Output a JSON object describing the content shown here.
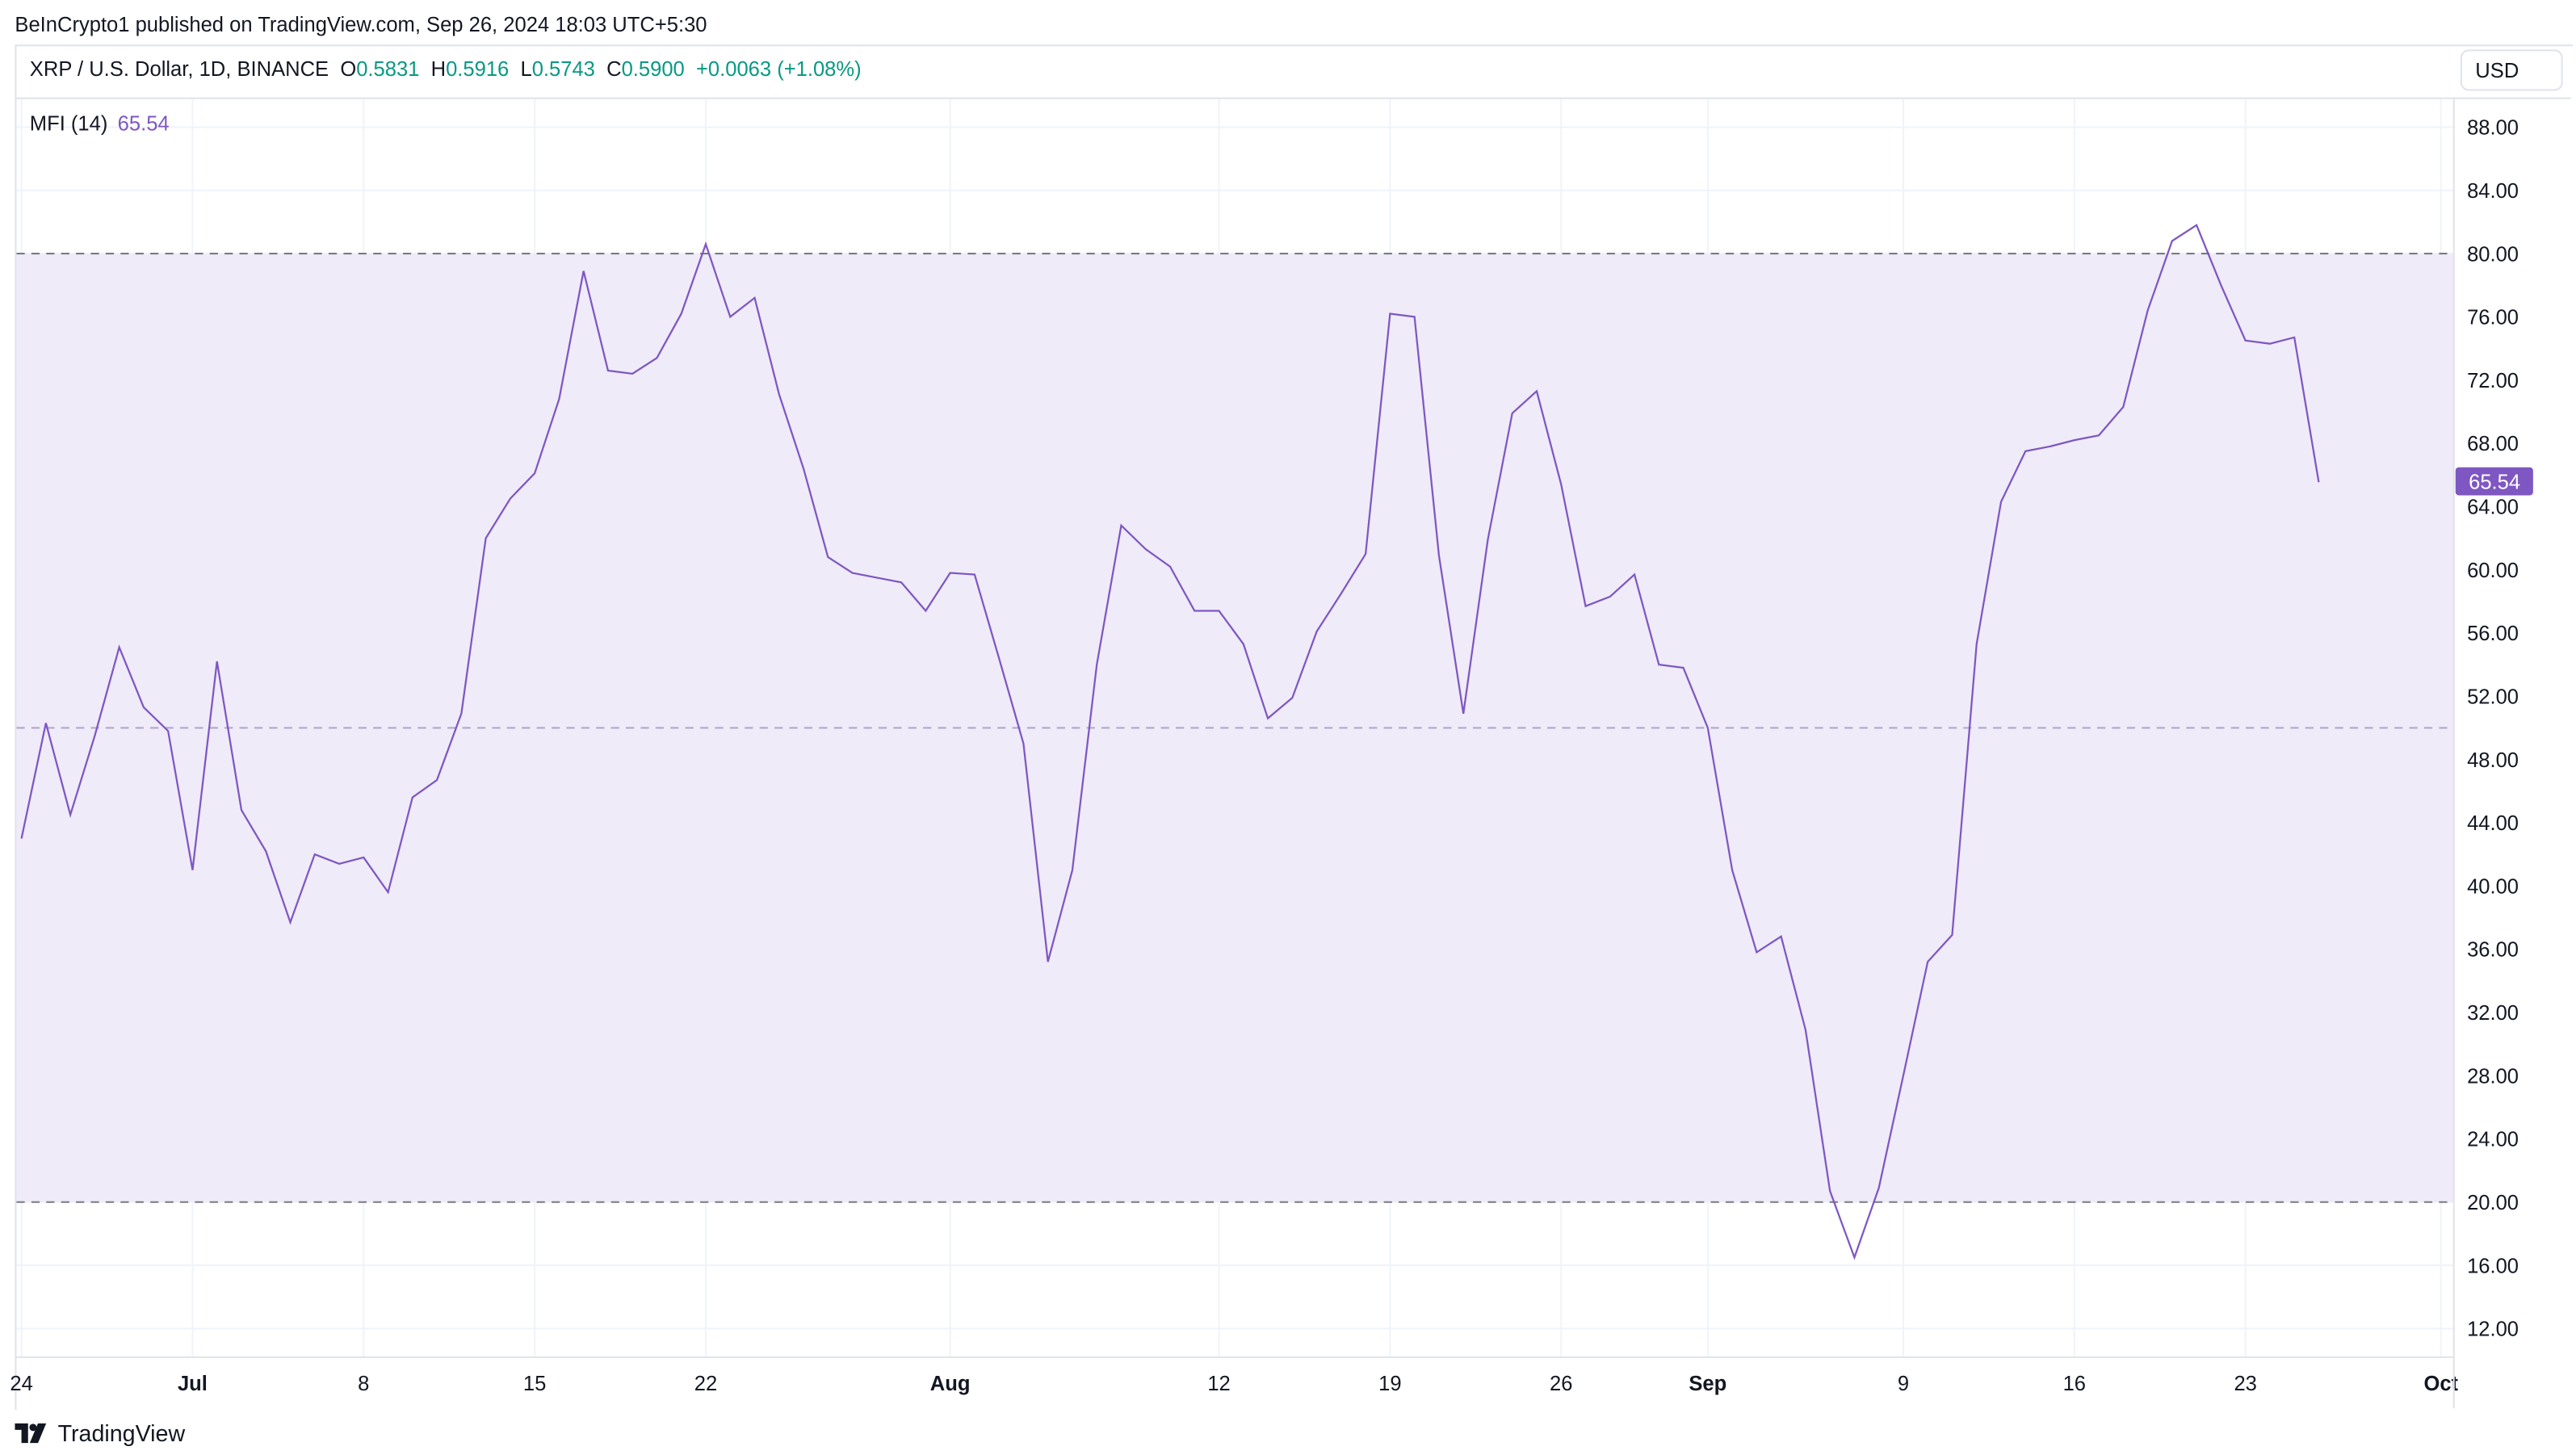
{
  "header": {
    "published": "BeInCrypto1 published on TradingView.com, Sep 26, 2024 18:03 UTC+5:30"
  },
  "legend": {
    "symbol": "XRP / U.S. Dollar, 1D, BINANCE",
    "o_label": "O",
    "o": "0.5831",
    "h_label": "H",
    "h": "0.5916",
    "l_label": "L",
    "l": "0.5743",
    "c_label": "C",
    "c": "0.5900",
    "change": "+0.0063 (+1.08%)"
  },
  "currency_button": "USD",
  "indicator": {
    "name": "MFI (14)",
    "value": "65.54"
  },
  "footer": {
    "brand": "TradingView"
  },
  "colors": {
    "line": "#7e57c2",
    "band": "#efebf8",
    "up": "#089981"
  },
  "chart_data": {
    "type": "line",
    "title": "MFI (14)",
    "start_date": "2024-06-24",
    "ylim": [
      10,
      90
    ],
    "yticks": [
      "88.00",
      "84.00",
      "80.00",
      "76.00",
      "72.00",
      "68.00",
      "64.00",
      "60.00",
      "56.00",
      "52.00",
      "48.00",
      "44.00",
      "40.00",
      "36.00",
      "32.00",
      "28.00",
      "24.00",
      "20.00",
      "16.00",
      "12.00"
    ],
    "ytick_values": [
      88,
      84,
      80,
      76,
      72,
      68,
      64,
      60,
      56,
      52,
      48,
      44,
      40,
      36,
      32,
      28,
      24,
      20,
      16,
      12
    ],
    "xticks": [
      {
        "label": "24",
        "day": 0
      },
      {
        "label": "Jul",
        "day": 7
      },
      {
        "label": "8",
        "day": 14
      },
      {
        "label": "15",
        "day": 21
      },
      {
        "label": "22",
        "day": 28
      },
      {
        "label": "Aug",
        "day": 38
      },
      {
        "label": "12",
        "day": 49
      },
      {
        "label": "19",
        "day": 56
      },
      {
        "label": "26",
        "day": 63
      },
      {
        "label": "Sep",
        "day": 69
      },
      {
        "label": "9",
        "day": 77
      },
      {
        "label": "16",
        "day": 84
      },
      {
        "label": "23",
        "day": 91
      },
      {
        "label": "Oct",
        "day": 99
      }
    ],
    "levels": {
      "upper": 80,
      "middle": 50,
      "lower": 20
    },
    "last_value_label": "65.54",
    "values": [
      43.0,
      50.3,
      44.5,
      49.5,
      55.1,
      51.3,
      49.8,
      41.0,
      54.2,
      44.8,
      42.2,
      37.7,
      42.0,
      41.4,
      41.8,
      39.6,
      45.6,
      46.7,
      50.9,
      62.0,
      64.5,
      66.1,
      70.8,
      78.9,
      72.6,
      72.4,
      73.4,
      76.2,
      80.6,
      76.0,
      77.2,
      71.1,
      66.4,
      60.8,
      59.8,
      59.5,
      59.2,
      57.4,
      59.8,
      59.7,
      54.4,
      49.0,
      35.2,
      41.0,
      54.0,
      62.8,
      61.3,
      60.2,
      57.4,
      57.4,
      55.3,
      50.6,
      51.9,
      56.1,
      58.5,
      61.0,
      76.2,
      76.0,
      60.9,
      50.9,
      61.9,
      69.9,
      71.3,
      65.4,
      57.7,
      58.3,
      59.7,
      54.0,
      53.8,
      50.0,
      41.0,
      35.8,
      36.8,
      30.9,
      20.7,
      16.5,
      20.9,
      28.0,
      35.2,
      36.9,
      55.3,
      64.3,
      67.5,
      67.8,
      68.2,
      68.5,
      70.3,
      76.4,
      80.8,
      81.8,
      78.0,
      74.5,
      74.3,
      74.7,
      65.54
    ]
  }
}
